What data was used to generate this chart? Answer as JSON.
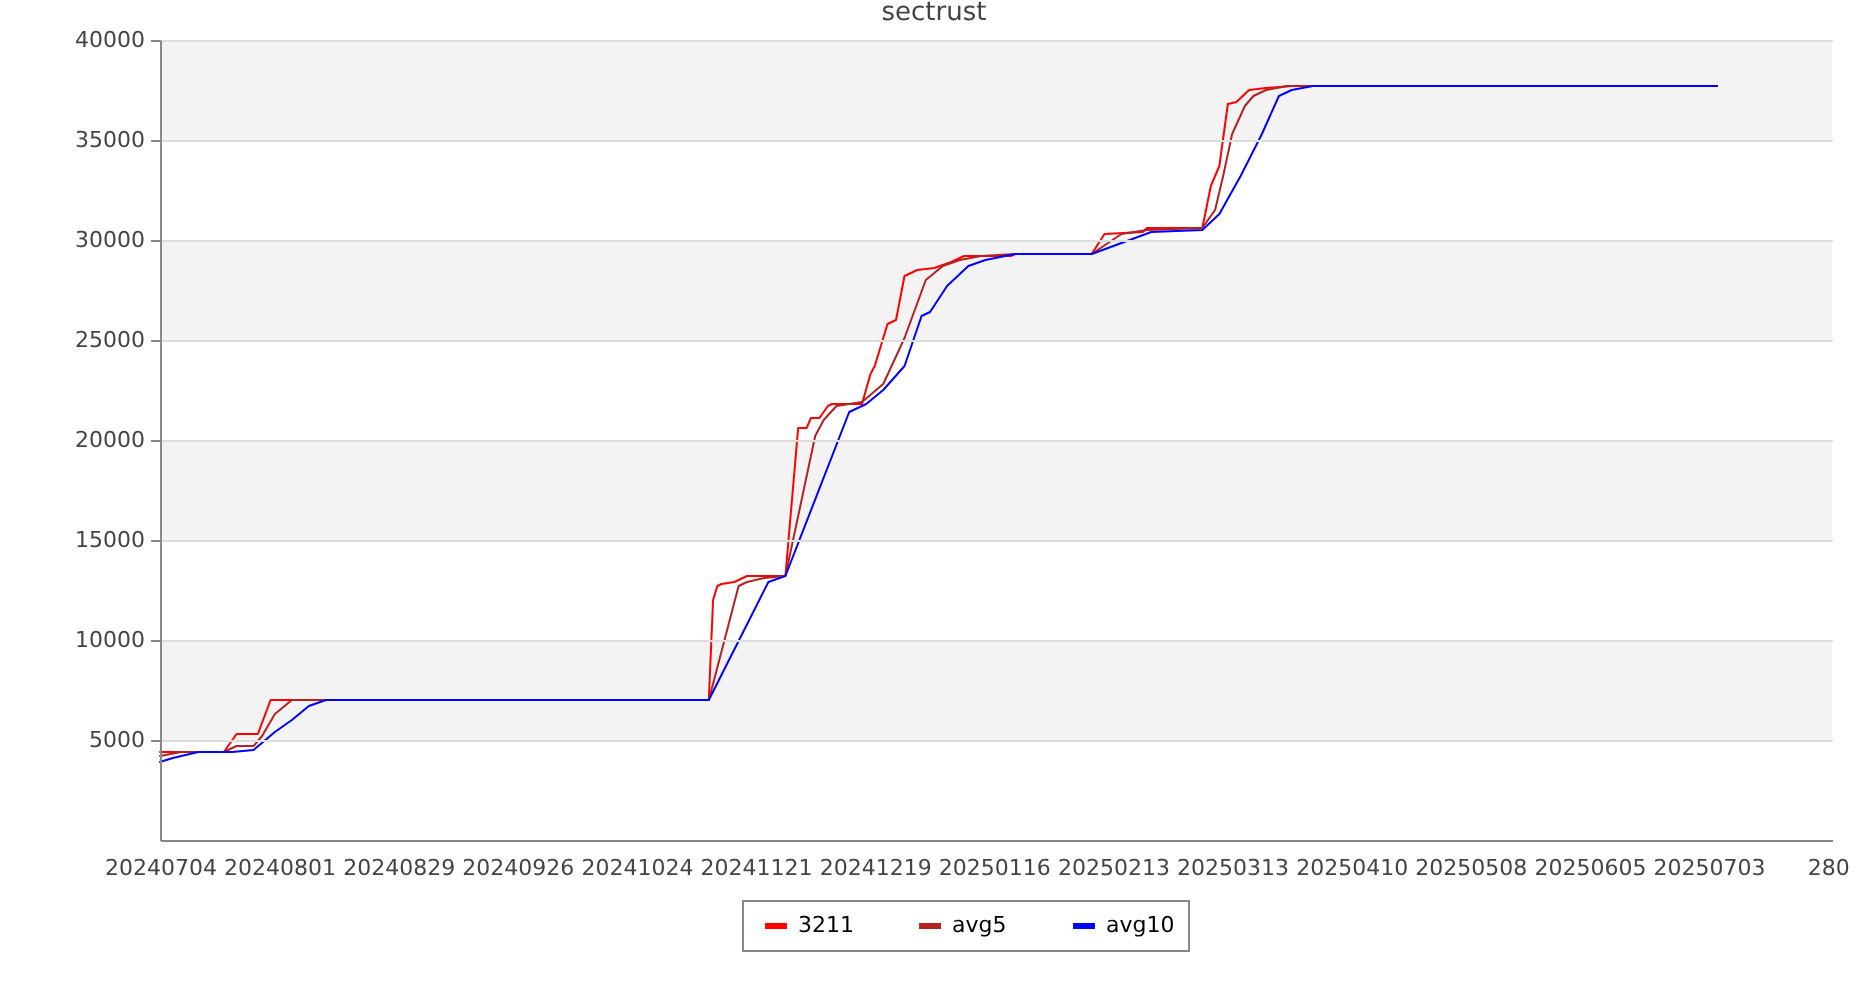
{
  "chart_data": {
    "type": "line",
    "title": "sectrust",
    "xlim": [
      "2024-07-04",
      "2025-08-01"
    ],
    "xticks": [
      {
        "value": "2024-07-04",
        "label": "20240704"
      },
      {
        "value": "2024-08-01",
        "label": "20240801"
      },
      {
        "value": "2024-08-29",
        "label": "20240829"
      },
      {
        "value": "2024-09-26",
        "label": "20240926"
      },
      {
        "value": "2024-10-24",
        "label": "20241024"
      },
      {
        "value": "2024-11-21",
        "label": "20241121"
      },
      {
        "value": "2024-12-19",
        "label": "20241219"
      },
      {
        "value": "2025-01-16",
        "label": "20250116"
      },
      {
        "value": "2025-02-13",
        "label": "20250213"
      },
      {
        "value": "2025-03-13",
        "label": "20250313"
      },
      {
        "value": "2025-04-10",
        "label": "20250410"
      },
      {
        "value": "2025-05-08",
        "label": "20250508"
      },
      {
        "value": "2025-06-05",
        "label": "20250605"
      },
      {
        "value": "2025-07-03",
        "label": "20250703"
      },
      {
        "value": "2025-07-31",
        "label": "280"
      }
    ],
    "ylim": [
      0,
      40000
    ],
    "yticks": [
      5000,
      10000,
      15000,
      20000,
      25000,
      30000,
      35000,
      40000
    ],
    "grid": "y",
    "legend": "bottom",
    "bands": [
      {
        "axis": "y",
        "from": 5000,
        "to": 10000,
        "color": "#f3f3f3"
      },
      {
        "axis": "y",
        "from": 15000,
        "to": 20000,
        "color": "#f3f3f3"
      },
      {
        "axis": "y",
        "from": 25000,
        "to": 30000,
        "color": "#f3f3f3"
      },
      {
        "axis": "y",
        "from": 35000,
        "to": 40000,
        "color": "#f3f3f3"
      }
    ],
    "series": [
      {
        "name": "3211",
        "color": "#ff0000",
        "x": [
          "2024-07-04",
          "2024-07-19",
          "2024-07-22",
          "2024-07-27",
          "2024-07-30",
          "2024-11-10",
          "2024-11-11",
          "2024-11-12",
          "2024-11-13",
          "2024-11-16",
          "2024-11-19",
          "2024-11-28",
          "2024-12-01",
          "2024-12-03",
          "2024-12-04",
          "2024-12-06",
          "2024-12-08",
          "2024-12-09",
          "2024-12-16",
          "2024-12-18",
          "2024-12-19",
          "2024-12-22",
          "2024-12-24",
          "2024-12-26",
          "2024-12-29",
          "2025-01-02",
          "2025-01-06",
          "2025-01-09",
          "2025-01-20",
          "2025-01-21",
          "2025-02-08",
          "2025-02-11",
          "2025-02-20",
          "2025-02-21",
          "2025-03-06",
          "2025-03-08",
          "2025-03-10",
          "2025-03-12",
          "2025-03-14",
          "2025-03-17",
          "2025-03-21",
          "2025-03-27",
          "2025-07-05"
        ],
        "values": [
          4400,
          4400,
          5300,
          5300,
          7000,
          7000,
          12000,
          12700,
          12800,
          12900,
          13200,
          13200,
          20600,
          20600,
          21100,
          21100,
          21700,
          21800,
          21800,
          23300,
          23700,
          25800,
          26000,
          28200,
          28500,
          28600,
          28900,
          29200,
          29200,
          29300,
          29300,
          30300,
          30400,
          30600,
          30600,
          32700,
          33700,
          36800,
          36900,
          37500,
          37600,
          37700,
          37700
        ]
      },
      {
        "name": "avg5",
        "color": "#b22222",
        "x": [
          "2024-07-04",
          "2024-07-09",
          "2024-07-19",
          "2024-07-22",
          "2024-07-26",
          "2024-07-28",
          "2024-07-31",
          "2024-08-04",
          "2024-11-10",
          "2024-11-17",
          "2024-11-19",
          "2024-11-23",
          "2024-11-28",
          "2024-12-05",
          "2024-12-07",
          "2024-12-10",
          "2024-12-16",
          "2024-12-21",
          "2024-12-26",
          "2024-12-31",
          "2025-01-04",
          "2025-01-08",
          "2025-01-13",
          "2025-01-21",
          "2025-02-08",
          "2025-02-15",
          "2025-02-21",
          "2025-03-06",
          "2025-03-09",
          "2025-03-11",
          "2025-03-13",
          "2025-03-16",
          "2025-03-18",
          "2025-03-21",
          "2025-03-26",
          "2025-07-05"
        ],
        "values": [
          4200,
          4400,
          4400,
          4700,
          4700,
          5200,
          6300,
          7000,
          7000,
          12700,
          12900,
          13100,
          13200,
          20200,
          21000,
          21700,
          21900,
          22800,
          25100,
          28000,
          28700,
          29000,
          29200,
          29300,
          29300,
          30300,
          30500,
          30600,
          31500,
          33300,
          35300,
          36700,
          37200,
          37500,
          37700,
          37700
        ]
      },
      {
        "name": "avg10",
        "color": "#0000ff",
        "x": [
          "2024-07-04",
          "2024-07-07",
          "2024-07-09",
          "2024-07-13",
          "2024-07-21",
          "2024-07-26",
          "2024-07-31",
          "2024-08-04",
          "2024-08-08",
          "2024-08-12",
          "2024-11-10",
          "2024-11-24",
          "2024-11-28",
          "2024-12-13",
          "2024-12-17",
          "2024-12-21",
          "2024-12-26",
          "2024-12-30",
          "2025-01-01",
          "2025-01-05",
          "2025-01-10",
          "2025-01-14",
          "2025-01-21",
          "2025-02-08",
          "2025-02-22",
          "2025-03-06",
          "2025-03-07",
          "2025-03-10",
          "2025-03-15",
          "2025-03-20",
          "2025-03-24",
          "2025-03-27",
          "2025-04-01",
          "2025-07-05"
        ],
        "values": [
          3900,
          4100,
          4200,
          4400,
          4400,
          4500,
          5400,
          6000,
          6700,
          7000,
          7000,
          12900,
          13200,
          21400,
          21800,
          22500,
          23700,
          26200,
          26400,
          27700,
          28700,
          29000,
          29300,
          29300,
          30400,
          30500,
          30700,
          31300,
          33200,
          35300,
          37200,
          37500,
          37700,
          37700
        ]
      }
    ]
  }
}
